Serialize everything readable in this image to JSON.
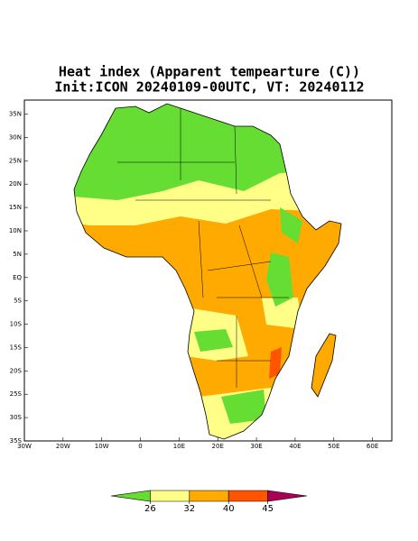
{
  "chart_data": {
    "type": "map",
    "title": "Heat index (Apparent tempearture (C))",
    "subtitle": "Init:ICON 20240109-00UTC, VT: 20240112",
    "xlim": [
      -30,
      65
    ],
    "ylim": [
      -35,
      38
    ],
    "xticks": [
      {
        "value": -30,
        "label": "30W"
      },
      {
        "value": -20,
        "label": "20W"
      },
      {
        "value": -10,
        "label": "10W"
      },
      0,
      {
        "value": 10,
        "label": "10E"
      },
      {
        "value": 20,
        "label": "20E"
      },
      {
        "value": 30,
        "label": "30E"
      },
      {
        "value": 40,
        "label": "40E"
      },
      {
        "value": 50,
        "label": "50E"
      },
      {
        "value": 60,
        "label": "60E"
      }
    ],
    "yticks": [
      {
        "value": 35,
        "label": "35N"
      },
      {
        "value": 30,
        "label": "30N"
      },
      {
        "value": 25,
        "label": "25N"
      },
      {
        "value": 20,
        "label": "20N"
      },
      {
        "value": 15,
        "label": "15N"
      },
      {
        "value": 10,
        "label": "10N"
      },
      {
        "value": 5,
        "label": "5N"
      },
      {
        "value": 0,
        "label": "EQ"
      },
      {
        "value": -5,
        "label": "5S"
      },
      {
        "value": -10,
        "label": "10S"
      },
      {
        "value": -15,
        "label": "15S"
      },
      {
        "value": -20,
        "label": "20S"
      },
      {
        "value": -25,
        "label": "25S"
      },
      {
        "value": -30,
        "label": "30S"
      },
      {
        "value": -35,
        "label": "35S"
      }
    ],
    "colorbar": {
      "levels": [
        26,
        32,
        40,
        45
      ],
      "colors": [
        "#66dd33",
        "#ffff88",
        "#ffaa00",
        "#ff5500",
        "#aa0055"
      ]
    }
  }
}
